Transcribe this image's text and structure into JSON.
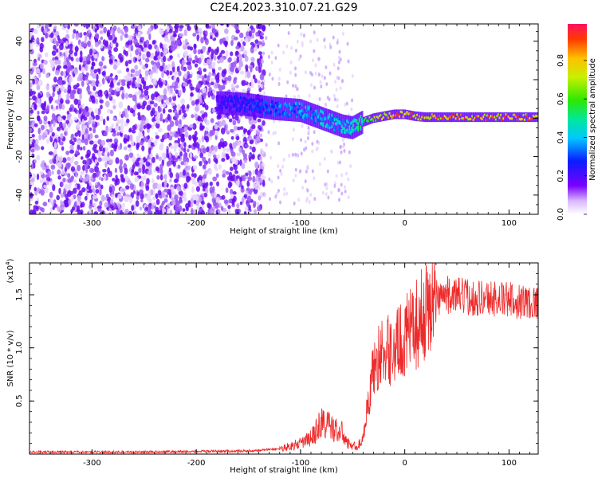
{
  "title": "C2E4.2023.310.07.21.G29",
  "chart_data": [
    {
      "type": "heatmap",
      "xlabel": "Height of straight line (km)",
      "ylabel": "Frequency (Hz)",
      "xlim": [
        -360,
        128
      ],
      "ylim": [
        -50,
        49
      ],
      "xticks": [
        -300,
        -200,
        -100,
        0,
        100
      ],
      "yticks": [
        -40,
        -20,
        0,
        20,
        40
      ],
      "ridge": {
        "x": [
          -175,
          -150,
          -125,
          -100,
          -80,
          -60,
          -50,
          -40,
          -30,
          -20,
          -10,
          0,
          10,
          20,
          60,
          100,
          128
        ],
        "freq": [
          8,
          7,
          5,
          4,
          0,
          -4,
          -5,
          -2,
          0,
          1,
          2,
          2,
          1,
          0.5,
          0.5,
          0.5,
          0.5
        ],
        "amp": [
          0.25,
          0.3,
          0.35,
          0.4,
          0.45,
          0.45,
          0.5,
          0.6,
          0.7,
          0.85,
          0.9,
          0.92,
          0.95,
          0.95,
          0.95,
          0.93,
          0.9
        ]
      },
      "colorbar": {
        "label": "Normalized spectral amplitude",
        "ticks": [
          "0.0",
          "0.2",
          "0.4",
          "0.6",
          "0.8"
        ]
      }
    },
    {
      "type": "line",
      "xlabel": "Height of straight line (km)",
      "ylabel": "SNR (10 * v/v)",
      "scale_label": "(x10",
      "scale_exp": "4",
      "scale_close": ")",
      "xlim": [
        -360,
        128
      ],
      "ylim": [
        0,
        1.8
      ],
      "xticks": [
        -300,
        -200,
        -100,
        0,
        100
      ],
      "yticks": [
        0.5,
        1.0,
        1.5
      ],
      "ytick_labels": [
        "0.5",
        "1.0",
        "1.5"
      ],
      "series": [
        {
          "name": "SNR",
          "color": "#ee2a2a",
          "x": [
            -360,
            -250,
            -150,
            -120,
            -100,
            -90,
            -85,
            -80,
            -75,
            -70,
            -65,
            -60,
            -55,
            -50,
            -45,
            -40,
            -35,
            -30,
            -25,
            -20,
            -15,
            -10,
            -5,
            0,
            5,
            10,
            15,
            20,
            25,
            30,
            40,
            60,
            80,
            100,
            128
          ],
          "values": [
            0.02,
            0.02,
            0.03,
            0.05,
            0.1,
            0.15,
            0.22,
            0.3,
            0.28,
            0.25,
            0.22,
            0.2,
            0.1,
            0.08,
            0.07,
            0.15,
            0.5,
            0.8,
            0.92,
            0.95,
            0.98,
            1.0,
            1.05,
            1.1,
            1.15,
            1.2,
            1.28,
            1.35,
            1.42,
            1.48,
            1.5,
            1.48,
            1.47,
            1.45,
            1.43
          ]
        }
      ]
    }
  ]
}
